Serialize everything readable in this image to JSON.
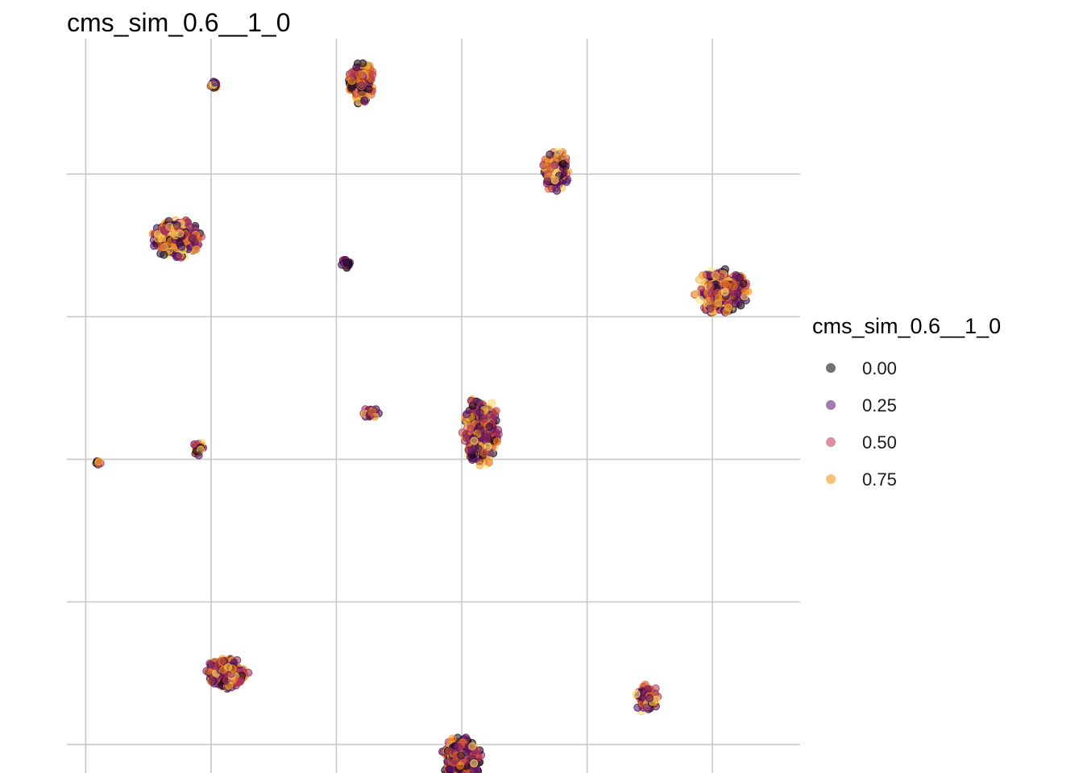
{
  "chart_data": {
    "type": "scatter",
    "title": "cms_sim_0.6__1_0",
    "xlabel": "",
    "ylabel": "",
    "xlim": [
      -6.3,
      5.4
    ],
    "ylim": [
      -5.4,
      4.9
    ],
    "x_gridlines": [
      -6,
      -4,
      -2,
      0,
      2,
      4
    ],
    "y_gridlines": [
      -5,
      -3,
      -1,
      1,
      3
    ],
    "grid": true,
    "tick_labels_visible": false,
    "legend": {
      "title": "cms_sim_0.6__1_0",
      "position": "right",
      "entries": [
        {
          "label": "0.00",
          "color": "#000004"
        },
        {
          "label": "0.25",
          "color": "#57106e"
        },
        {
          "label": "0.50",
          "color": "#bc3754"
        },
        {
          "label": "0.75",
          "color": "#f98e09"
        }
      ]
    },
    "color_scale": [
      "#000004",
      "#57106e",
      "#bc3754",
      "#f98e09",
      "#fcffa4"
    ],
    "clusters": [
      {
        "x": -3.95,
        "y": 4.25,
        "rx": 0.06,
        "ry": 0.05,
        "n": 25
      },
      {
        "x": -1.6,
        "y": 4.3,
        "rx": 0.2,
        "ry": 0.32,
        "n": 220
      },
      {
        "x": 1.5,
        "y": 3.05,
        "rx": 0.22,
        "ry": 0.3,
        "n": 220
      },
      {
        "x": -4.55,
        "y": 2.1,
        "rx": 0.4,
        "ry": 0.3,
        "n": 320
      },
      {
        "x": -1.85,
        "y": 1.75,
        "rx": 0.07,
        "ry": 0.07,
        "n": 25
      },
      {
        "x": 4.15,
        "y": 1.35,
        "rx": 0.45,
        "ry": 0.32,
        "n": 380
      },
      {
        "x": -1.45,
        "y": -0.35,
        "rx": 0.13,
        "ry": 0.08,
        "n": 40
      },
      {
        "x": 0.3,
        "y": -0.6,
        "rx": 0.3,
        "ry": 0.5,
        "n": 360
      },
      {
        "x": -4.2,
        "y": -0.85,
        "rx": 0.1,
        "ry": 0.1,
        "n": 30
      },
      {
        "x": -5.8,
        "y": -1.05,
        "rx": 0.04,
        "ry": 0.04,
        "n": 10
      },
      {
        "x": -3.75,
        "y": -4.0,
        "rx": 0.35,
        "ry": 0.22,
        "n": 260
      },
      {
        "x": 2.95,
        "y": -4.35,
        "rx": 0.2,
        "ry": 0.2,
        "n": 110
      },
      {
        "x": 0.0,
        "y": -5.2,
        "rx": 0.33,
        "ry": 0.33,
        "n": 320
      }
    ]
  }
}
